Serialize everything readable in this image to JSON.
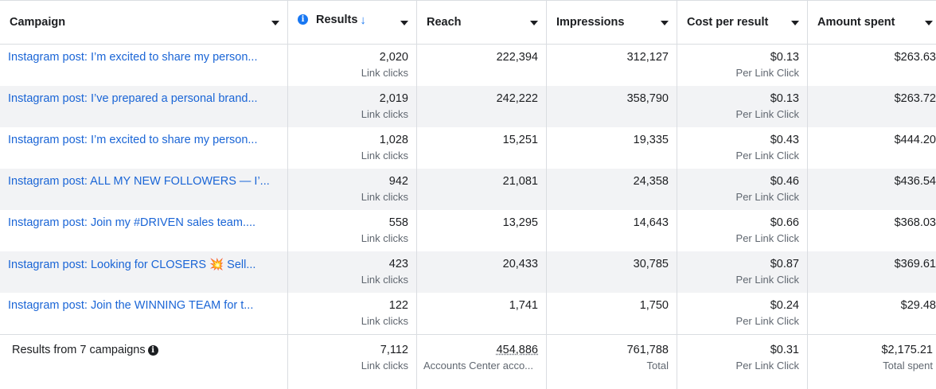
{
  "columns": {
    "campaign": "Campaign",
    "results": "Results",
    "results_sort_arrow": "↓",
    "reach": "Reach",
    "impressions": "Impressions",
    "cost_per_result": "Cost per result",
    "amount_spent": "Amount spent"
  },
  "rows": [
    {
      "campaign": "Instagram post: I’m excited to share my person...",
      "results": "2,020",
      "results_sub": "Link clicks",
      "reach": "222,394",
      "impressions": "312,127",
      "cost": "$0.13",
      "cost_sub": "Per Link Click",
      "spent": "$263.63"
    },
    {
      "campaign": "Instagram post: I’ve prepared a personal brand...",
      "results": "2,019",
      "results_sub": "Link clicks",
      "reach": "242,222",
      "impressions": "358,790",
      "cost": "$0.13",
      "cost_sub": "Per Link Click",
      "spent": "$263.72"
    },
    {
      "campaign": "Instagram post: I’m excited to share my person...",
      "results": "1,028",
      "results_sub": "Link clicks",
      "reach": "15,251",
      "impressions": "19,335",
      "cost": "$0.43",
      "cost_sub": "Per Link Click",
      "spent": "$444.20"
    },
    {
      "campaign": "Instagram post: ALL MY NEW FOLLOWERS — I’...",
      "results": "942",
      "results_sub": "Link clicks",
      "reach": "21,081",
      "impressions": "24,358",
      "cost": "$0.46",
      "cost_sub": "Per Link Click",
      "spent": "$436.54"
    },
    {
      "campaign": "Instagram post: Join my #DRIVEN sales team....",
      "results": "558",
      "results_sub": "Link clicks",
      "reach": "13,295",
      "impressions": "14,643",
      "cost": "$0.66",
      "cost_sub": "Per Link Click",
      "spent": "$368.03"
    },
    {
      "campaign_prefix": "Instagram post: Looking for CLOSERS",
      "campaign_emoji": "💥",
      "campaign_suffix": "Sell...",
      "results": "423",
      "results_sub": "Link clicks",
      "reach": "20,433",
      "impressions": "30,785",
      "cost": "$0.87",
      "cost_sub": "Per Link Click",
      "spent": "$369.61"
    },
    {
      "campaign": "Instagram post: Join the WINNING TEAM for t...",
      "results": "122",
      "results_sub": "Link clicks",
      "reach": "1,741",
      "impressions": "1,750",
      "cost": "$0.24",
      "cost_sub": "Per Link Click",
      "spent": "$29.48"
    }
  ],
  "footer": {
    "label": "Results from 7 campaigns",
    "results": "7,112",
    "results_sub": "Link clicks",
    "reach": "454,886",
    "reach_sub": "Accounts Center acco...",
    "impressions": "761,788",
    "impressions_sub": "Total",
    "cost": "$0.31",
    "cost_sub": "Per Link Click",
    "spent": "$2,175.21",
    "spent_sub": "Total spent"
  },
  "colors": {
    "link": "#1a65d6",
    "accent": "#1877f2",
    "stripe": "#f2f3f5",
    "border": "#dadde1"
  },
  "icons": {
    "results_info": "info-icon",
    "footer_info": "info-icon",
    "sort": "arrow-down-icon",
    "column_menu": "caret-down-icon"
  }
}
